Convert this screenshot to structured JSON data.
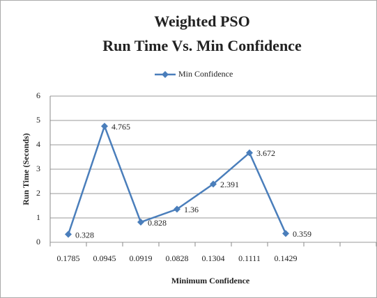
{
  "chart_data": {
    "type": "line",
    "title": "Weighted PSO",
    "subtitle": "Run Time Vs. Min Confidence",
    "x_label": "Minimum Confidence",
    "y_label": "Run Time (Seconds)",
    "categories": [
      "0.1785",
      "0.0945",
      "0.0919",
      "0.0828",
      "0.1304",
      "0.1111",
      "0.1429",
      null,
      null
    ],
    "series": [
      {
        "name": "Min Confidence",
        "color": "#4a7ebb",
        "values": [
          0.328,
          4.765,
          0.828,
          1.36,
          2.391,
          3.672,
          0.359,
          null,
          null
        ]
      }
    ],
    "ylim": [
      0,
      6
    ],
    "yticks": [
      0,
      1,
      2,
      3,
      4,
      5,
      6
    ],
    "grid": true,
    "legend": "top"
  }
}
